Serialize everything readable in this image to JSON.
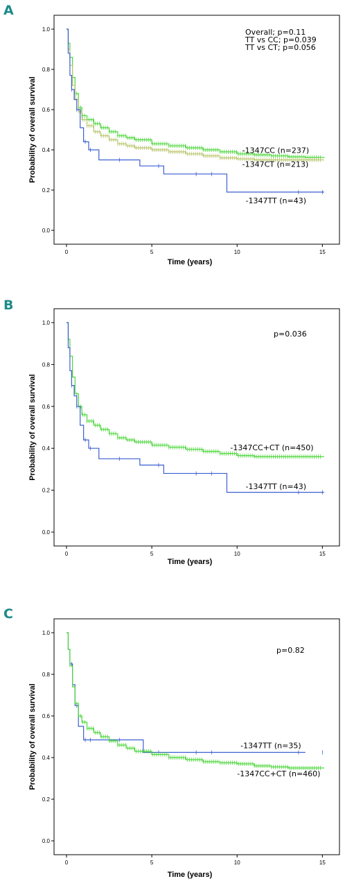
{
  "colors": {
    "green": "#4bd63a",
    "olive": "#b8c46a",
    "blue": "#3a5fd0",
    "letter": "#1f8a8a",
    "axis": "#000000"
  },
  "chart_data": [
    {
      "panel_letter": "A",
      "type": "line",
      "xlabel": "Time (years)",
      "ylabel": "Probability of overall survival",
      "xlim": [
        0,
        16
      ],
      "ylim": [
        0,
        1
      ],
      "xticks": [
        "0",
        "5",
        "10",
        "15"
      ],
      "yticks": [
        "0.0",
        "0.2",
        "0.4",
        "0.6",
        "0.8",
        "1.0"
      ],
      "annotation_lines": [
        "Overall; p=0.11",
        "TT vs CC; p=0.039",
        "TT vs CT; p=0.056"
      ],
      "series": [
        {
          "name": "-1347CC (n=237)",
          "color": "green",
          "x": [
            0,
            0.1,
            0.2,
            0.35,
            0.5,
            0.7,
            0.9,
            1.2,
            1.6,
            2,
            2.5,
            3,
            3.5,
            4,
            5,
            6,
            7,
            8,
            9,
            10,
            11,
            12,
            13,
            14,
            15.1
          ],
          "y": [
            1,
            0.93,
            0.86,
            0.76,
            0.68,
            0.61,
            0.57,
            0.55,
            0.53,
            0.51,
            0.49,
            0.47,
            0.46,
            0.45,
            0.43,
            0.42,
            0.41,
            0.4,
            0.39,
            0.38,
            0.375,
            0.37,
            0.365,
            0.362,
            0.36
          ]
        },
        {
          "name": "-1347CT (n=213)",
          "color": "olive",
          "x": [
            0,
            0.1,
            0.2,
            0.35,
            0.5,
            0.7,
            0.9,
            1.2,
            1.6,
            2,
            2.5,
            3,
            3.5,
            4,
            5,
            6,
            7,
            8,
            9,
            10,
            11,
            12,
            13,
            14,
            15.1
          ],
          "y": [
            1,
            0.9,
            0.82,
            0.72,
            0.65,
            0.59,
            0.55,
            0.52,
            0.49,
            0.47,
            0.45,
            0.43,
            0.42,
            0.41,
            0.4,
            0.39,
            0.38,
            0.37,
            0.36,
            0.355,
            0.35,
            0.35,
            0.35,
            0.35,
            0.35
          ]
        },
        {
          "name": "-1347TT (n=43)",
          "color": "blue",
          "x": [
            0,
            0.1,
            0.2,
            0.3,
            0.45,
            0.6,
            0.8,
            1.0,
            1.3,
            1.9,
            4.3,
            5.7,
            9.4,
            15.1
          ],
          "y": [
            1,
            0.88,
            0.77,
            0.7,
            0.65,
            0.6,
            0.51,
            0.44,
            0.4,
            0.35,
            0.32,
            0.28,
            0.19,
            0.19
          ]
        }
      ],
      "labels": [
        {
          "text": "-1347CC (n=237)",
          "x": 10.3,
          "y": 0.385
        },
        {
          "text": "-1347CT (n=213)",
          "x": 10.3,
          "y": 0.315
        },
        {
          "text": "-1347TT (n=43)",
          "x": 10.5,
          "y": 0.135
        }
      ]
    },
    {
      "panel_letter": "B",
      "type": "line",
      "xlabel": "Time (years)",
      "ylabel": "Probability of overall survival",
      "xlim": [
        0,
        16
      ],
      "ylim": [
        0,
        1
      ],
      "xticks": [
        "0",
        "5",
        "10",
        "15"
      ],
      "yticks": [
        "0.0",
        "0.2",
        "0.4",
        "0.6",
        "0.8",
        "1.0"
      ],
      "annotation_lines": [
        "p=0.036"
      ],
      "series": [
        {
          "name": "-1347CC+CT (n=450)",
          "color": "green",
          "x": [
            0,
            0.1,
            0.2,
            0.35,
            0.5,
            0.7,
            0.9,
            1.2,
            1.6,
            2,
            2.5,
            3,
            3.5,
            4,
            5,
            6,
            7,
            8,
            9,
            10,
            11,
            12,
            13,
            14,
            15.1
          ],
          "y": [
            1,
            0.92,
            0.84,
            0.74,
            0.66,
            0.6,
            0.56,
            0.53,
            0.51,
            0.49,
            0.47,
            0.45,
            0.44,
            0.43,
            0.415,
            0.405,
            0.395,
            0.385,
            0.375,
            0.365,
            0.36,
            0.36,
            0.36,
            0.36,
            0.36
          ]
        },
        {
          "name": "-1347TT (n=43)",
          "color": "blue",
          "x": [
            0,
            0.1,
            0.2,
            0.3,
            0.45,
            0.6,
            0.8,
            1.0,
            1.3,
            1.9,
            4.3,
            5.7,
            9.4,
            15.1
          ],
          "y": [
            1,
            0.88,
            0.77,
            0.7,
            0.65,
            0.6,
            0.51,
            0.44,
            0.4,
            0.35,
            0.32,
            0.28,
            0.19,
            0.19
          ]
        }
      ],
      "labels": [
        {
          "text": "-1347CC+CT (n=450)",
          "x": 9.6,
          "y": 0.39
        },
        {
          "text": "-1347TT (n=43)",
          "x": 10.5,
          "y": 0.205
        }
      ]
    },
    {
      "panel_letter": "C",
      "type": "line",
      "xlabel": "Time (years)",
      "ylabel": "Probability of overall survival",
      "xlim": [
        0,
        16
      ],
      "ylim": [
        0,
        1
      ],
      "xticks": [
        "0",
        "5",
        "10",
        "15"
      ],
      "yticks": [
        "0.0",
        "0.2",
        "0.4",
        "0.6",
        "0.8",
        "1.0"
      ],
      "annotation_lines": [
        "p=0.82"
      ],
      "series": [
        {
          "name": "-1347TT (n=35)",
          "color": "blue",
          "x": [
            0,
            0.1,
            0.2,
            0.35,
            0.5,
            0.7,
            1.0,
            4.2,
            4.5,
            14.0
          ],
          "y": [
            1,
            0.92,
            0.85,
            0.75,
            0.65,
            0.55,
            0.485,
            0.485,
            0.425,
            0.425
          ]
        },
        {
          "name": "-1347CC+CT (n=460)",
          "color": "green",
          "x": [
            0,
            0.1,
            0.2,
            0.35,
            0.5,
            0.7,
            0.9,
            1.2,
            1.6,
            2,
            2.5,
            3,
            3.5,
            4,
            5,
            6,
            7,
            8,
            9,
            10,
            11,
            12,
            13,
            14,
            15.1
          ],
          "y": [
            1,
            0.92,
            0.84,
            0.74,
            0.66,
            0.6,
            0.57,
            0.54,
            0.52,
            0.5,
            0.48,
            0.46,
            0.445,
            0.43,
            0.415,
            0.4,
            0.39,
            0.38,
            0.375,
            0.37,
            0.36,
            0.355,
            0.35,
            0.35,
            0.35
          ]
        }
      ],
      "labels": [
        {
          "text": "-1347TT (n=35)",
          "x": 10.2,
          "y": 0.445
        },
        {
          "text": "-1347CC+CT (n=460)",
          "x": 10.0,
          "y": 0.31
        }
      ]
    }
  ]
}
